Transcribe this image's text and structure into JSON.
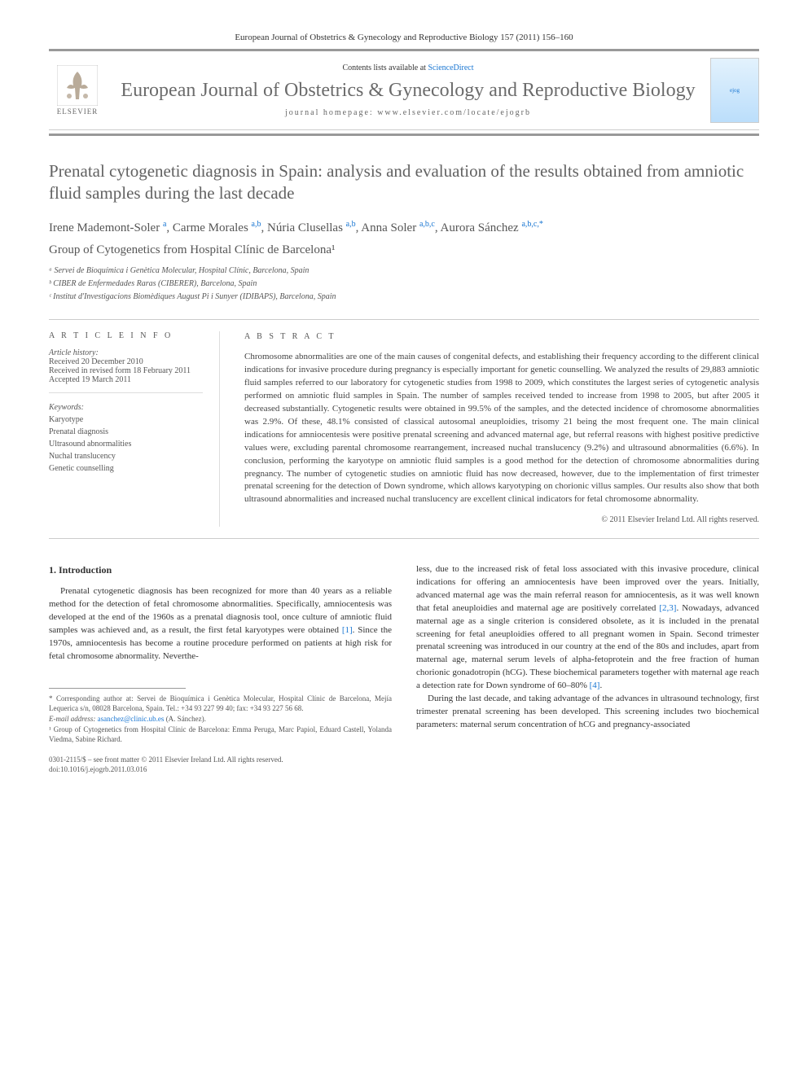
{
  "header": {
    "citation": "European Journal of Obstetrics & Gynecology and Reproductive Biology 157 (2011) 156–160",
    "contents_prefix": "Contents lists available at ",
    "contents_link": "ScienceDirect",
    "journal_title": "European Journal of Obstetrics & Gynecology and Reproductive Biology",
    "homepage": "journal homepage: www.elsevier.com/locate/ejogrb",
    "publisher": "ELSEVIER",
    "cover_text": "ejog"
  },
  "article": {
    "title": "Prenatal cytogenetic diagnosis in Spain: analysis and evaluation of the results obtained from amniotic fluid samples during the last decade",
    "authors_html": "Irene Mademont-Soler <sup>a</sup>, Carme Morales <sup>a,b</sup>, Núria Clusellas <sup>a,b</sup>, Anna Soler <sup>a,b,c</sup>, Aurora Sánchez <sup>a,b,c,*</sup>",
    "group": "Group of Cytogenetics from Hospital Clínic de Barcelona¹",
    "affiliations": [
      "ᵃ Servei de Bioquímica i Genètica Molecular, Hospital Clínic, Barcelona, Spain",
      "ᵇ CIBER de Enfermedades Raras (CIBERER), Barcelona, Spain",
      "ᶜ Institut d'Investigacions Biomèdiques August Pi i Sunyer (IDIBAPS), Barcelona, Spain"
    ]
  },
  "info": {
    "heading": "A R T I C L E   I N F O",
    "history_label": "Article history:",
    "history": [
      "Received 20 December 2010",
      "Received in revised form 18 February 2011",
      "Accepted 19 March 2011"
    ],
    "keywords_label": "Keywords:",
    "keywords": [
      "Karyotype",
      "Prenatal diagnosis",
      "Ultrasound abnormalities",
      "Nuchal translucency",
      "Genetic counselling"
    ]
  },
  "abstract": {
    "heading": "A B S T R A C T",
    "text": "Chromosome abnormalities are one of the main causes of congenital defects, and establishing their frequency according to the different clinical indications for invasive procedure during pregnancy is especially important for genetic counselling. We analyzed the results of 29,883 amniotic fluid samples referred to our laboratory for cytogenetic studies from 1998 to 2009, which constitutes the largest series of cytogenetic analysis performed on amniotic fluid samples in Spain. The number of samples received tended to increase from 1998 to 2005, but after 2005 it decreased substantially. Cytogenetic results were obtained in 99.5% of the samples, and the detected incidence of chromosome abnormalities was 2.9%. Of these, 48.1% consisted of classical autosomal aneuploidies, trisomy 21 being the most frequent one. The main clinical indications for amniocentesis were positive prenatal screening and advanced maternal age, but referral reasons with highest positive predictive values were, excluding parental chromosome rearrangement, increased nuchal translucency (9.2%) and ultrasound abnormalities (6.6%). In conclusion, performing the karyotype on amniotic fluid samples is a good method for the detection of chromosome abnormalities during pregnancy. The number of cytogenetic studies on amniotic fluid has now decreased, however, due to the implementation of first trimester prenatal screening for the detection of Down syndrome, which allows karyotyping on chorionic villus samples. Our results also show that both ultrasound abnormalities and increased nuchal translucency are excellent clinical indicators for fetal chromosome abnormality.",
    "copyright": "© 2011 Elsevier Ireland Ltd. All rights reserved."
  },
  "body": {
    "section1_heading": "1. Introduction",
    "col1_p1": "Prenatal cytogenetic diagnosis has been recognized for more than 40 years as a reliable method for the detection of fetal chromosome abnormalities. Specifically, amniocentesis was developed at the end of the 1960s as a prenatal diagnosis tool, once culture of amniotic fluid samples was achieved and, as a result, the first fetal karyotypes were obtained [1]. Since the 1970s, amniocentesis has become a routine procedure performed on patients at high risk for fetal chromosome abnormality. Neverthe-",
    "col2_p1": "less, due to the increased risk of fetal loss associated with this invasive procedure, clinical indications for offering an amniocentesis have been improved over the years. Initially, advanced maternal age was the main referral reason for amniocentesis, as it was well known that fetal aneuploidies and maternal age are positively correlated [2,3]. Nowadays, advanced maternal age as a single criterion is considered obsolete, as it is included in the prenatal screening for fetal aneuploidies offered to all pregnant women in Spain. Second trimester prenatal screening was introduced in our country at the end of the 80s and includes, apart from maternal age, maternal serum levels of alpha-fetoprotein and the free fraction of human chorionic gonadotropin (hCG). These biochemical parameters together with maternal age reach a detection rate for Down syndrome of 60–80% [4].",
    "col2_p2": "During the last decade, and taking advantage of the advances in ultrasound technology, first trimester prenatal screening has been developed. This screening includes two biochemical parameters: maternal serum concentration of hCG and pregnancy-associated"
  },
  "footnotes": {
    "corresponding": "* Corresponding author at: Servei de Bioquímica i Genètica Molecular, Hospital Clínic de Barcelona, Mejía Lequerica s/n, 08028 Barcelona, Spain. Tel.: +34 93 227 99 40; fax: +34 93 227 56 68.",
    "email_label": "E-mail address: ",
    "email": "asanchez@clinic.ub.es",
    "email_suffix": " (A. Sánchez).",
    "group_note": "¹ Group of Cytogenetics from Hospital Clínic de Barcelona: Emma Peruga, Marc Papiol, Eduard Castell, Yolanda Viedma, Sabine Richard.",
    "issn": "0301-2115/$ – see front matter © 2011 Elsevier Ireland Ltd. All rights reserved.",
    "doi": "doi:10.1016/j.ejogrb.2011.03.016"
  },
  "colors": {
    "text": "#333333",
    "muted": "#555555",
    "gray_title": "#626262",
    "link": "#1976d2",
    "border": "#cccccc",
    "border_thick": "#999999"
  }
}
